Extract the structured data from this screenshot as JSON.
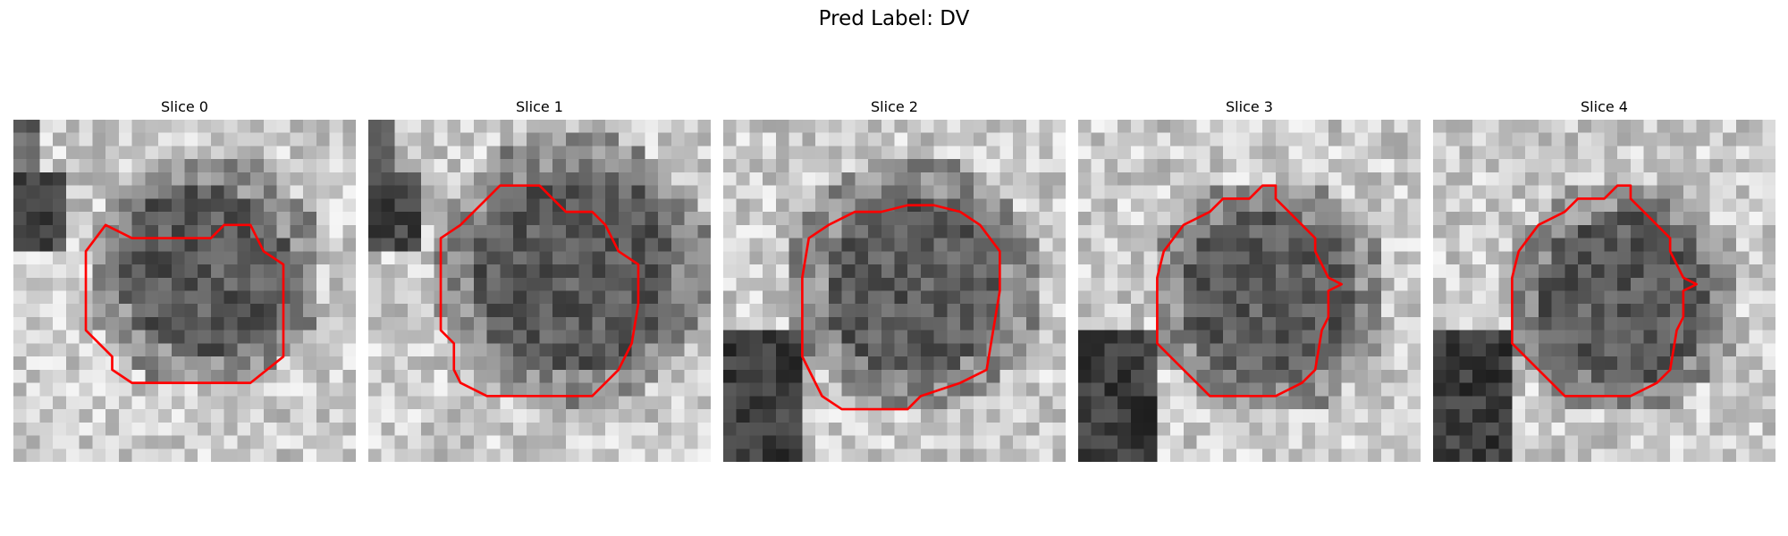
{
  "figure": {
    "title": "Pred Label: DV",
    "contour_color": "#ff0000"
  },
  "slices": [
    {
      "label": "Slice 0",
      "seed": 11,
      "center_row": 11,
      "center_col": 14,
      "radius": 7.0,
      "dark_tail": "top-left"
    },
    {
      "label": "Slice 1",
      "seed": 23,
      "center_row": 11,
      "center_col": 15,
      "radius": 8.5,
      "dark_tail": "top-left"
    },
    {
      "label": "Slice 2",
      "seed": 37,
      "center_row": 12,
      "center_col": 14,
      "radius": 7.5,
      "dark_tail": "bottom-left"
    },
    {
      "label": "Slice 3",
      "seed": 41,
      "center_row": 13,
      "center_col": 14,
      "radius": 7.0,
      "dark_tail": "bottom-left"
    },
    {
      "label": "Slice 4",
      "seed": 53,
      "center_row": 13,
      "center_col": 14,
      "radius": 7.0,
      "dark_tail": "bottom-left"
    }
  ],
  "contours": [
    [
      [
        5.5,
        11
      ],
      [
        5.5,
        16
      ],
      [
        7.5,
        18
      ],
      [
        7.5,
        19
      ],
      [
        9,
        20
      ],
      [
        18,
        20
      ],
      [
        20.5,
        18
      ],
      [
        20.5,
        11
      ],
      [
        19,
        10
      ],
      [
        18,
        8
      ],
      [
        16,
        8
      ],
      [
        15,
        9
      ],
      [
        9,
        9
      ],
      [
        7,
        8
      ],
      [
        5.5,
        10
      ]
    ],
    [
      [
        5.5,
        12
      ],
      [
        5.5,
        16
      ],
      [
        6.5,
        17
      ],
      [
        6.5,
        19
      ],
      [
        7,
        20
      ],
      [
        9,
        21
      ],
      [
        17,
        21
      ],
      [
        19,
        19
      ],
      [
        20,
        17
      ],
      [
        20.5,
        14
      ],
      [
        20.5,
        11
      ],
      [
        19,
        10
      ],
      [
        18,
        8
      ],
      [
        17,
        7
      ],
      [
        15,
        7
      ],
      [
        14,
        6
      ],
      [
        13,
        5
      ],
      [
        10,
        5
      ],
      [
        9,
        6
      ],
      [
        8,
        7
      ],
      [
        7,
        8
      ],
      [
        5.5,
        9
      ]
    ],
    [
      [
        6,
        12
      ],
      [
        6,
        18
      ],
      [
        7,
        20
      ],
      [
        7.5,
        21
      ],
      [
        9,
        22
      ],
      [
        14,
        22
      ],
      [
        15,
        21
      ],
      [
        18,
        20
      ],
      [
        20,
        19
      ],
      [
        20.5,
        16
      ],
      [
        21,
        13
      ],
      [
        21,
        10
      ],
      [
        19.5,
        8
      ],
      [
        18,
        7
      ],
      [
        16,
        6.5
      ],
      [
        14,
        6.5
      ],
      [
        12,
        7
      ],
      [
        10,
        7
      ],
      [
        8,
        8
      ],
      [
        6.5,
        9
      ]
    ],
    [
      [
        6,
        12
      ],
      [
        6,
        17
      ],
      [
        7,
        18
      ],
      [
        9,
        20
      ],
      [
        10,
        21
      ],
      [
        15,
        21
      ],
      [
        17,
        20
      ],
      [
        18,
        19
      ],
      [
        18.5,
        16
      ],
      [
        19,
        15
      ],
      [
        19,
        13
      ],
      [
        20,
        12.5
      ],
      [
        19,
        12
      ],
      [
        18,
        10
      ],
      [
        18,
        9
      ],
      [
        17,
        8
      ],
      [
        16,
        7
      ],
      [
        15,
        6
      ],
      [
        15,
        5
      ],
      [
        14,
        5
      ],
      [
        13,
        6
      ],
      [
        11,
        6
      ],
      [
        10,
        7
      ],
      [
        8,
        8
      ],
      [
        6.5,
        10
      ]
    ],
    [
      [
        6,
        12
      ],
      [
        6,
        17
      ],
      [
        7,
        18
      ],
      [
        9,
        20
      ],
      [
        10,
        21
      ],
      [
        15,
        21
      ],
      [
        17,
        20
      ],
      [
        18,
        19
      ],
      [
        18.5,
        16
      ],
      [
        19,
        15
      ],
      [
        19,
        13
      ],
      [
        20,
        12.5
      ],
      [
        19,
        12
      ],
      [
        18,
        10
      ],
      [
        18,
        9
      ],
      [
        17,
        8
      ],
      [
        16,
        7
      ],
      [
        15,
        6
      ],
      [
        15,
        5
      ],
      [
        14,
        5
      ],
      [
        13,
        6
      ],
      [
        11,
        6
      ],
      [
        10,
        7
      ],
      [
        8,
        8
      ],
      [
        6.5,
        10
      ]
    ]
  ]
}
